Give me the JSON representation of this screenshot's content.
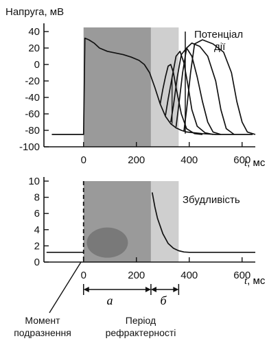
{
  "chart_data": [
    {
      "type": "line",
      "ylabel": "Напруга, мВ",
      "xlabel_var": "t",
      "xlabel_unit": ", мс",
      "xlim": [
        -150,
        650
      ],
      "ylim": [
        -100,
        45
      ],
      "x_ticks": [
        0,
        200,
        400,
        600
      ],
      "y_ticks": [
        40,
        20,
        0,
        -20,
        -40,
        -60,
        -80,
        -100
      ],
      "legend": [
        "Потенціал",
        "дії"
      ],
      "shading": {
        "dark": [
          0,
          255
        ],
        "light": [
          255,
          360
        ],
        "colors": {
          "dark": "#9a9a9a",
          "light": "#cfcfcf"
        }
      },
      "series": [
        {
          "x": [
            -120,
            0,
            5,
            20,
            40,
            60,
            90,
            120,
            150,
            180,
            210,
            230,
            250,
            270,
            290,
            310,
            330,
            350,
            370,
            390,
            420,
            450,
            500,
            560,
            640
          ],
          "y": [
            -85,
            -85,
            32,
            30,
            26,
            20,
            16,
            14,
            12,
            9,
            5,
            0,
            -10,
            -28,
            -48,
            -63,
            -72,
            -77,
            -80,
            -82,
            -83,
            -84,
            -85,
            -85,
            -85
          ]
        },
        {
          "x": [
            290,
            300,
            310,
            320,
            330,
            340,
            350,
            370,
            390,
            420,
            450
          ],
          "y": [
            -48,
            -30,
            -15,
            -2,
            0,
            -10,
            -28,
            -60,
            -78,
            -84,
            -85
          ]
        },
        {
          "x": [
            310,
            320,
            335,
            350,
            365,
            380,
            395,
            410,
            430,
            460,
            490
          ],
          "y": [
            -62,
            -42,
            -16,
            10,
            16,
            2,
            -25,
            -55,
            -75,
            -83,
            -85
          ]
        },
        {
          "x": [
            330,
            340,
            355,
            370,
            390,
            410,
            430,
            450,
            470,
            490,
            520
          ],
          "y": [
            -70,
            -50,
            -15,
            12,
            20,
            10,
            -15,
            -45,
            -70,
            -82,
            -85
          ]
        },
        {
          "x": [
            350,
            360,
            375,
            390,
            410,
            440,
            470,
            500,
            520,
            540,
            570
          ],
          "y": [
            -76,
            -50,
            -10,
            20,
            26,
            22,
            10,
            -20,
            -55,
            -78,
            -85
          ]
        },
        {
          "x": [
            380,
            390,
            405,
            420,
            450,
            490,
            530,
            560,
            580,
            600,
            620,
            650
          ],
          "y": [
            -81,
            -55,
            -10,
            25,
            30,
            25,
            15,
            -10,
            -45,
            -70,
            -82,
            -85
          ]
        }
      ]
    },
    {
      "type": "line",
      "xlabel_var": "t",
      "xlabel_unit": ", мс",
      "xlim": [
        -150,
        650
      ],
      "ylim": [
        0,
        10
      ],
      "x_ticks": [
        0,
        200,
        400,
        600
      ],
      "y_ticks": [
        10,
        8,
        6,
        4,
        2,
        0
      ],
      "legend": [
        "Збудливість"
      ],
      "shading": {
        "dark": [
          0,
          255
        ],
        "light": [
          255,
          360
        ],
        "colors": {
          "dark": "#9a9a9a",
          "light": "#cfcfcf"
        }
      },
      "series": [
        {
          "x": [
            -140,
            0,
            255,
            260,
            270,
            280,
            300,
            320,
            340,
            360,
            380,
            400,
            650
          ],
          "y": [
            1.2,
            1.2,
            null,
            8.6,
            6.8,
            5.4,
            3.5,
            2.3,
            1.7,
            1.4,
            1.25,
            1.2,
            1.2
          ]
        }
      ],
      "stimulus_line_x": 0
    }
  ],
  "periods": {
    "a_label": "а",
    "b_label": "б",
    "a_range": [
      0,
      255
    ],
    "b_range": [
      255,
      360
    ]
  },
  "annotations": {
    "stimulus_moment": [
      "Момент",
      "подразнення"
    ],
    "refractory_period": [
      "Період",
      "рефрактерності"
    ]
  }
}
